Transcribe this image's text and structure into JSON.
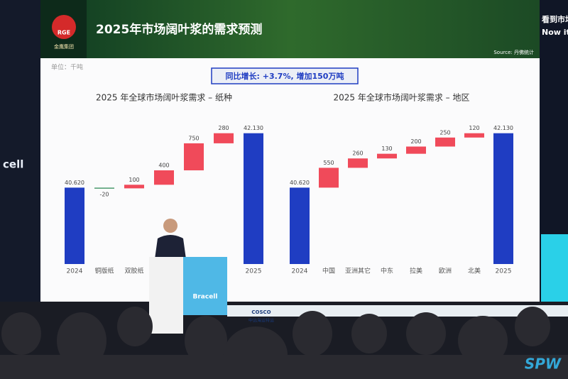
{
  "header": {
    "title": "2025年市场阔叶浆的需求预测",
    "logo": "RGE",
    "company": "金鹰集团",
    "source": "Source: 丹佛统计",
    "side_text": [
      "看到市场",
      "Now it"
    ]
  },
  "slide": {
    "unit": "单位：千吨",
    "banner": "同比增长: +3.7%, 增加150万吨"
  },
  "venue": {
    "podium": "Bracell",
    "sponsor": "COSCO",
    "sponsor_sub": "中远海运特运",
    "brand": "SPW",
    "wall": "cell"
  },
  "chart_data": [
    {
      "type": "waterfall",
      "title": "2025 年全球市场阔叶浆需求 – 纸种",
      "categories": [
        "2024",
        "铜版纸",
        "双胶纸",
        null,
        null,
        null,
        "2025"
      ],
      "values": [
        40620,
        -20,
        100,
        400,
        750,
        280,
        42130
      ],
      "value_labels": [
        "40.620",
        "-20",
        "100",
        "400",
        "750",
        "280",
        "42.130"
      ],
      "ylim": [
        38500,
        42400
      ],
      "colors": {
        "total": "#1f3dc2",
        "increase": "#f04a5a",
        "decrease": "#4c9a6e"
      }
    },
    {
      "type": "waterfall",
      "title": "2025 年全球市场阔叶浆需求 – 地区",
      "categories": [
        "2024",
        "中国",
        "亚洲其它",
        "中东",
        "拉美",
        "欧洲",
        "北美",
        "2025"
      ],
      "values": [
        40620,
        550,
        260,
        130,
        200,
        250,
        120,
        42130
      ],
      "value_labels": [
        "40.620",
        "550",
        "260",
        "130",
        "200",
        "250",
        "120",
        "42.130"
      ],
      "ylim": [
        38500,
        42400
      ],
      "colors": {
        "total": "#1f3dc2",
        "increase": "#f04a5a",
        "decrease": "#4c9a6e"
      }
    }
  ]
}
